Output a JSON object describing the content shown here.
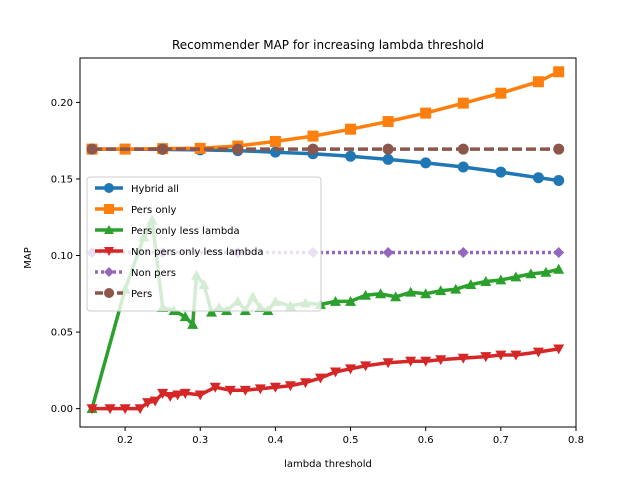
{
  "chart_data": {
    "type": "line",
    "title": "Recommender MAP for increasing lambda threshold",
    "xlabel": "lambda threshold",
    "ylabel": "MAP",
    "xlim": [
      0.14,
      0.8
    ],
    "ylim": [
      -0.012,
      0.229
    ],
    "xticks": [
      0.2,
      0.3,
      0.4,
      0.5,
      0.6,
      0.7,
      0.8
    ],
    "xtick_labels": [
      "0.2",
      "0.3",
      "0.4",
      "0.5",
      "0.6",
      "0.7",
      "0.8"
    ],
    "yticks": [
      0.0,
      0.05,
      0.1,
      0.15,
      0.2
    ],
    "ytick_labels": [
      "0.00",
      "0.05",
      "0.10",
      "0.15",
      "0.20"
    ],
    "grid": false,
    "legend_position": "center-left",
    "series": [
      {
        "name": "Hybrid all",
        "color": "#1f77b4",
        "marker": "circle",
        "linestyle": "solid",
        "x": [
          0.156,
          0.2,
          0.25,
          0.3,
          0.35,
          0.4,
          0.45,
          0.5,
          0.55,
          0.6,
          0.65,
          0.7,
          0.75,
          0.777
        ],
        "y": [
          0.1695,
          0.1695,
          0.1693,
          0.169,
          0.1685,
          0.1675,
          0.1665,
          0.1648,
          0.1628,
          0.1605,
          0.1578,
          0.1545,
          0.1508,
          0.149
        ]
      },
      {
        "name": "Pers only",
        "color": "#ff7f0e",
        "marker": "square",
        "linestyle": "solid",
        "x": [
          0.156,
          0.2,
          0.25,
          0.3,
          0.35,
          0.4,
          0.45,
          0.5,
          0.55,
          0.6,
          0.65,
          0.7,
          0.75,
          0.777
        ],
        "y": [
          0.1695,
          0.1695,
          0.1698,
          0.17,
          0.1715,
          0.1745,
          0.178,
          0.1825,
          0.1875,
          0.193,
          0.1995,
          0.206,
          0.2135,
          0.22
        ]
      },
      {
        "name": "Pers only less lambda",
        "color": "#2ca02c",
        "marker": "triangle-up",
        "linestyle": "solid",
        "x": [
          0.156,
          0.2,
          0.225,
          0.236,
          0.25,
          0.265,
          0.28,
          0.29,
          0.295,
          0.305,
          0.315,
          0.325,
          0.335,
          0.35,
          0.36,
          0.37,
          0.38,
          0.39,
          0.4,
          0.42,
          0.44,
          0.46,
          0.48,
          0.5,
          0.52,
          0.54,
          0.56,
          0.58,
          0.6,
          0.62,
          0.64,
          0.66,
          0.68,
          0.7,
          0.72,
          0.74,
          0.76,
          0.777
        ],
        "y": [
          0.0,
          0.078,
          0.112,
          0.123,
          0.066,
          0.064,
          0.06,
          0.055,
          0.087,
          0.081,
          0.063,
          0.066,
          0.064,
          0.07,
          0.064,
          0.073,
          0.066,
          0.064,
          0.07,
          0.067,
          0.069,
          0.068,
          0.07,
          0.07,
          0.074,
          0.075,
          0.073,
          0.076,
          0.075,
          0.077,
          0.078,
          0.081,
          0.083,
          0.084,
          0.086,
          0.088,
          0.089,
          0.091
        ]
      },
      {
        "name": "Non pers only less lambda",
        "color": "#d62728",
        "marker": "triangle-down",
        "linestyle": "solid",
        "x": [
          0.156,
          0.18,
          0.2,
          0.22,
          0.23,
          0.24,
          0.25,
          0.26,
          0.27,
          0.28,
          0.3,
          0.32,
          0.34,
          0.36,
          0.38,
          0.4,
          0.42,
          0.44,
          0.46,
          0.48,
          0.5,
          0.52,
          0.55,
          0.58,
          0.6,
          0.62,
          0.65,
          0.68,
          0.7,
          0.72,
          0.75,
          0.777
        ],
        "y": [
          0.0,
          0.0,
          0.0,
          0.0,
          0.004,
          0.005,
          0.01,
          0.008,
          0.009,
          0.01,
          0.009,
          0.014,
          0.012,
          0.012,
          0.013,
          0.014,
          0.015,
          0.017,
          0.02,
          0.024,
          0.026,
          0.028,
          0.03,
          0.031,
          0.031,
          0.032,
          0.033,
          0.034,
          0.035,
          0.035,
          0.037,
          0.039
        ]
      },
      {
        "name": "Non pers",
        "color": "#9467bd",
        "marker": "diamond",
        "linestyle": "dotted",
        "x": [
          0.156,
          0.25,
          0.35,
          0.45,
          0.55,
          0.65,
          0.777
        ],
        "y": [
          0.102,
          0.102,
          0.102,
          0.102,
          0.102,
          0.102,
          0.102
        ]
      },
      {
        "name": "Pers",
        "color": "#8c564b",
        "marker": "circle",
        "linestyle": "dashed",
        "x": [
          0.156,
          0.25,
          0.35,
          0.45,
          0.55,
          0.65,
          0.777
        ],
        "y": [
          0.1695,
          0.1695,
          0.1695,
          0.1695,
          0.1695,
          0.1695,
          0.1695
        ]
      }
    ]
  }
}
